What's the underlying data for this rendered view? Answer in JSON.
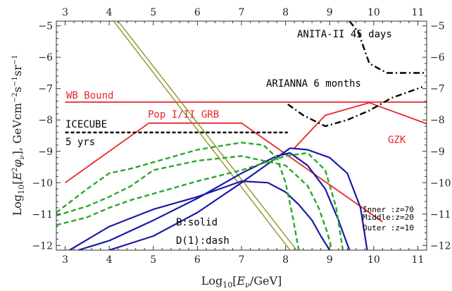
{
  "chart_data": {
    "type": "line",
    "xlabel": "Log10[Eν/GeV]",
    "ylabel": "Log10[E²φν], GeVcm⁻²s⁻¹sr⁻¹",
    "xlim": [
      2.8,
      11.2
    ],
    "ylim": [
      -12.15,
      -4.85
    ],
    "x_ticks": [
      3,
      4,
      5,
      6,
      7,
      8,
      9,
      10,
      11
    ],
    "y_ticks": [
      -12,
      -11,
      -10,
      -9,
      -8,
      -7,
      -6,
      -5
    ],
    "grid": false,
    "colors": {
      "red": "#e8262b",
      "blue": "#1a1aa8",
      "green": "#2aa82a",
      "olive": "#8a8a1a",
      "black": "#000000"
    },
    "annotations": {
      "anita": "ANITA-II 45 days",
      "arianna": "ARIANNA 6 months",
      "wb": "WB Bound",
      "grb": "Pop I/II GRB",
      "icecube_1": "ICECUBE",
      "icecube_2": "5 yrs",
      "gzk": "GZK",
      "b_solid": "B:solid",
      "d_dash": "D(1):dash",
      "inner": "Inner :z=70",
      "middle": "Middle:z=20",
      "outer": "Outer :z=10"
    },
    "series": [
      {
        "style": "red-solid",
        "x": [
          3.0,
          11.2
        ],
        "y": [
          -7.43,
          -7.43
        ]
      },
      {
        "style": "red-solid",
        "x": [
          3.0,
          4.9,
          7.0,
          10.2
        ],
        "y": [
          -10.0,
          -8.1,
          -8.1,
          -11.25
        ]
      },
      {
        "style": "red-solid",
        "x": [
          8.2,
          8.9,
          9.9,
          11.2
        ],
        "y": [
          -8.9,
          -7.85,
          -7.45,
          -8.12
        ]
      },
      {
        "style": "black-dash",
        "x": [
          3.0,
          8.05
        ],
        "y": [
          -8.4,
          -8.4
        ]
      },
      {
        "style": "black-dashdot",
        "x": [
          9.45,
          9.65,
          9.9,
          10.3,
          11.2
        ],
        "y": [
          -4.85,
          -5.2,
          -6.2,
          -6.5,
          -6.5
        ]
      },
      {
        "style": "black-dashdot",
        "x": [
          8.05,
          8.4,
          8.9,
          9.4,
          9.9,
          10.4,
          11.1
        ],
        "y": [
          -7.5,
          -7.85,
          -8.2,
          -8.0,
          -7.7,
          -7.3,
          -6.95
        ]
      },
      {
        "style": "olive-solid",
        "x": [
          4.1,
          8.1
        ],
        "y": [
          -4.85,
          -12.15
        ]
      },
      {
        "style": "olive-solid",
        "x": [
          4.2,
          8.25
        ],
        "y": [
          -4.85,
          -12.15
        ]
      },
      {
        "style": "blue-solid",
        "x": [
          3.1,
          4.0,
          5.0,
          6.0,
          7.0,
          7.6,
          8.0,
          8.3,
          8.6,
          8.8,
          9.0
        ],
        "y": [
          -12.15,
          -11.4,
          -10.85,
          -10.45,
          -9.95,
          -10.0,
          -10.3,
          -10.7,
          -11.2,
          -11.7,
          -12.15
        ]
      },
      {
        "style": "blue-solid",
        "x": [
          3.3,
          4.0,
          5.0,
          6.0,
          7.0,
          7.8,
          8.1,
          8.5,
          8.9,
          9.2,
          9.45
        ],
        "y": [
          -12.15,
          -11.85,
          -11.2,
          -10.5,
          -9.7,
          -9.15,
          -9.05,
          -9.45,
          -10.2,
          -11.2,
          -12.15
        ]
      },
      {
        "style": "blue-solid",
        "x": [
          4.0,
          5.0,
          6.0,
          7.0,
          7.8,
          8.1,
          8.5,
          9.0,
          9.4,
          9.7,
          9.85
        ],
        "y": [
          -12.15,
          -11.7,
          -10.95,
          -10.0,
          -9.2,
          -8.9,
          -8.95,
          -9.2,
          -9.7,
          -10.8,
          -12.15
        ]
      },
      {
        "style": "green-dash",
        "x": [
          2.8,
          3.5,
          4.0,
          4.5,
          5.0,
          6.0,
          7.0,
          7.5,
          7.8,
          8.0,
          8.15,
          8.3
        ],
        "y": [
          -10.95,
          -10.2,
          -9.7,
          -9.55,
          -9.35,
          -8.95,
          -8.72,
          -8.8,
          -9.2,
          -10.0,
          -11.0,
          -12.15
        ]
      },
      {
        "style": "green-dash",
        "x": [
          2.8,
          3.5,
          4.0,
          4.5,
          5.0,
          6.0,
          7.0,
          8.0,
          8.5,
          8.75,
          8.95,
          9.05
        ],
        "y": [
          -11.05,
          -10.75,
          -10.45,
          -10.1,
          -9.6,
          -9.3,
          -9.15,
          -9.45,
          -10.1,
          -10.8,
          -11.6,
          -12.15
        ]
      },
      {
        "style": "green-dash",
        "x": [
          2.8,
          3.5,
          4.0,
          4.5,
          5.0,
          6.0,
          7.0,
          8.0,
          8.5,
          8.9,
          9.15,
          9.3
        ],
        "y": [
          -11.35,
          -11.1,
          -10.8,
          -10.55,
          -10.35,
          -9.95,
          -9.6,
          -9.15,
          -9.05,
          -9.6,
          -10.8,
          -12.15
        ]
      }
    ]
  }
}
